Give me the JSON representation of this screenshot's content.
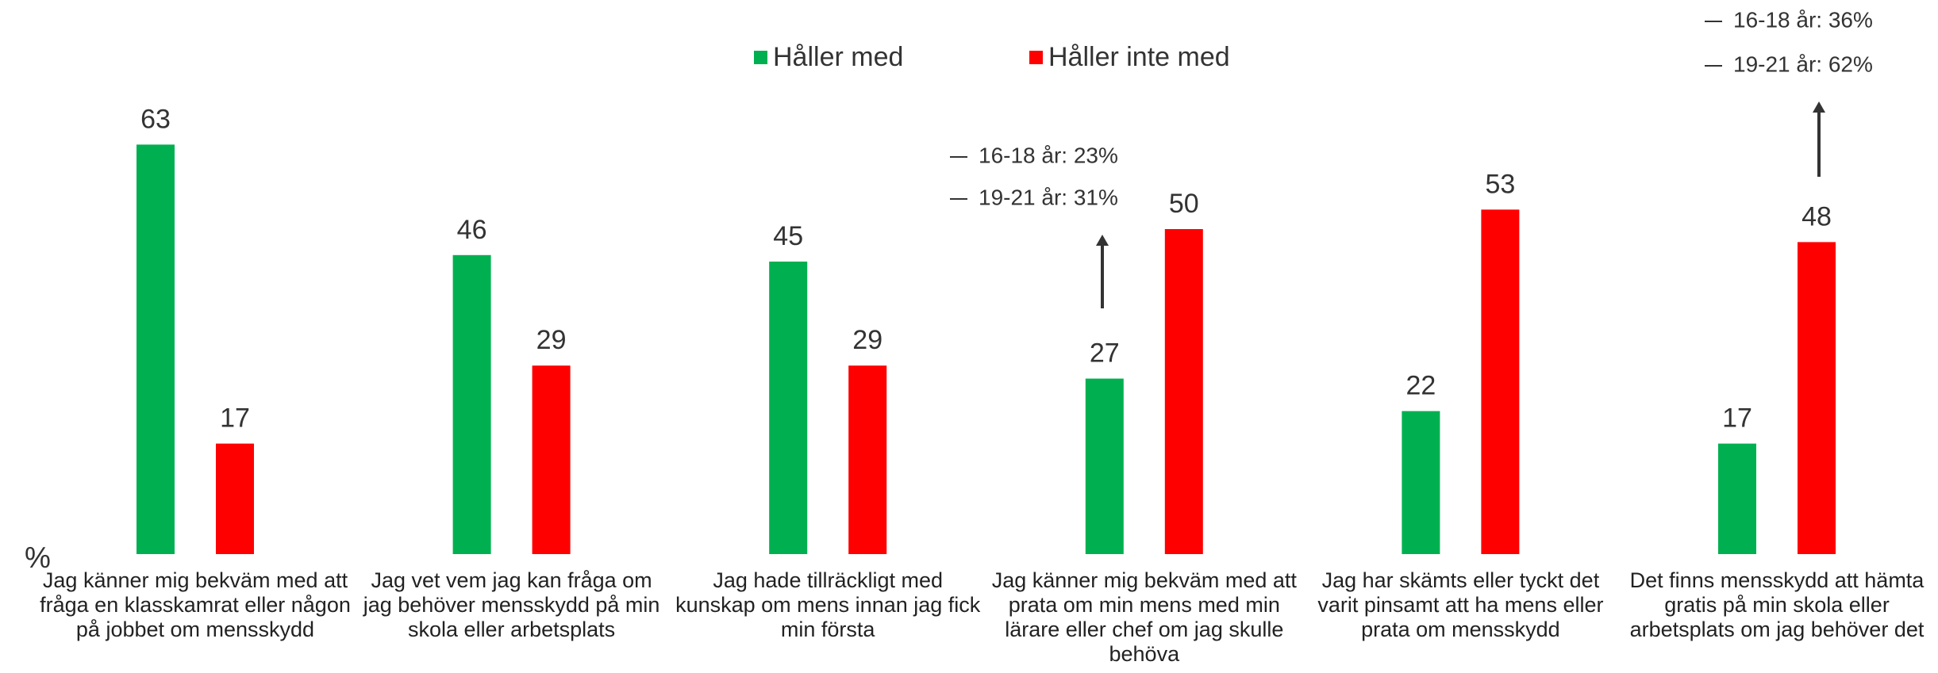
{
  "chart_data": {
    "type": "bar",
    "categories": [
      "Jag känner mig bekväm med att fråga en klasskamrat eller någon på jobbet om mensskydd",
      "Jag vet vem jag kan fråga om jag behöver mensskydd på min skola eller arbetsplats",
      "Jag hade tillräckligt med kunskap om mens innan jag fick min första",
      "Jag känner mig bekväm med att prata om min mens med min lärare eller chef om jag skulle behöva",
      "Jag har skämts eller tyckt det varit pinsamt att ha mens eller prata om mensskydd",
      "Det finns mensskydd att hämta gratis på min skola eller arbetsplats om jag behöver det"
    ],
    "series": [
      {
        "name": "Håller med",
        "color": "#00b050",
        "values": [
          63,
          46,
          45,
          27,
          22,
          17
        ]
      },
      {
        "name": "Håller inte med",
        "color": "#ff0000",
        "values": [
          17,
          29,
          29,
          50,
          53,
          48
        ]
      }
    ],
    "ylim": [
      0,
      70
    ],
    "y_label": "%",
    "annotations": [
      [
        "16-18 år: 23%",
        "19-21 år: 31%"
      ],
      [
        "16-18 år: 36%",
        "19-21 år: 62%"
      ]
    ],
    "legend": "top"
  }
}
